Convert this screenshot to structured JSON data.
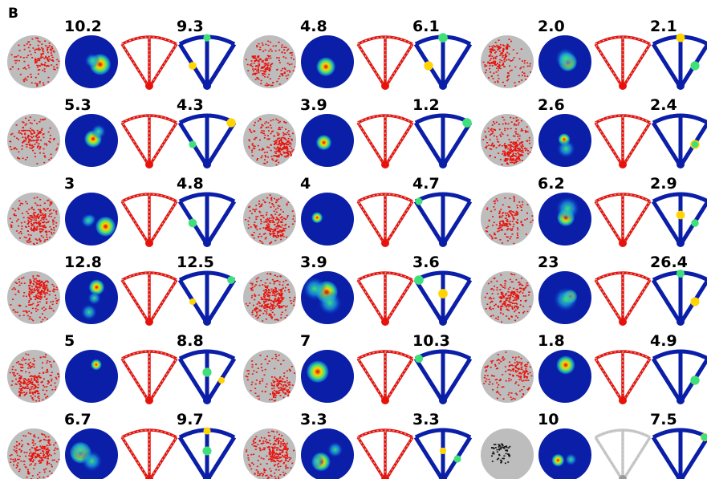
{
  "panel_label": "B",
  "groups": [
    {
      "rows": [
        {
          "open_field_peak": "10.2",
          "maze_peak": "9.3"
        },
        {
          "open_field_peak": "5.3",
          "maze_peak": "4.3"
        },
        {
          "open_field_peak": "3",
          "maze_peak": "4.8"
        },
        {
          "open_field_peak": "12.8",
          "maze_peak": "12.5"
        },
        {
          "open_field_peak": "5",
          "maze_peak": "8.8"
        },
        {
          "open_field_peak": "6.7",
          "maze_peak": "9.7"
        }
      ]
    },
    {
      "rows": [
        {
          "open_field_peak": "4.8",
          "maze_peak": "6.1"
        },
        {
          "open_field_peak": "3.9",
          "maze_peak": "1.2"
        },
        {
          "open_field_peak": "4",
          "maze_peak": "4.7"
        },
        {
          "open_field_peak": "3.9",
          "maze_peak": "3.6"
        },
        {
          "open_field_peak": "7",
          "maze_peak": "10.3"
        },
        {
          "open_field_peak": "3.3",
          "maze_peak": "3.3"
        }
      ]
    },
    {
      "rows": [
        {
          "open_field_peak": "2.0",
          "maze_peak": "2.1"
        },
        {
          "open_field_peak": "2.6",
          "maze_peak": "2.4"
        },
        {
          "open_field_peak": "6.2",
          "maze_peak": "2.9"
        },
        {
          "open_field_peak": "23",
          "maze_peak": "26.4"
        },
        {
          "open_field_peak": "1.8",
          "maze_peak": "4.9"
        },
        {
          "open_field_peak": "10",
          "maze_peak": "7.5"
        }
      ]
    }
  ]
}
